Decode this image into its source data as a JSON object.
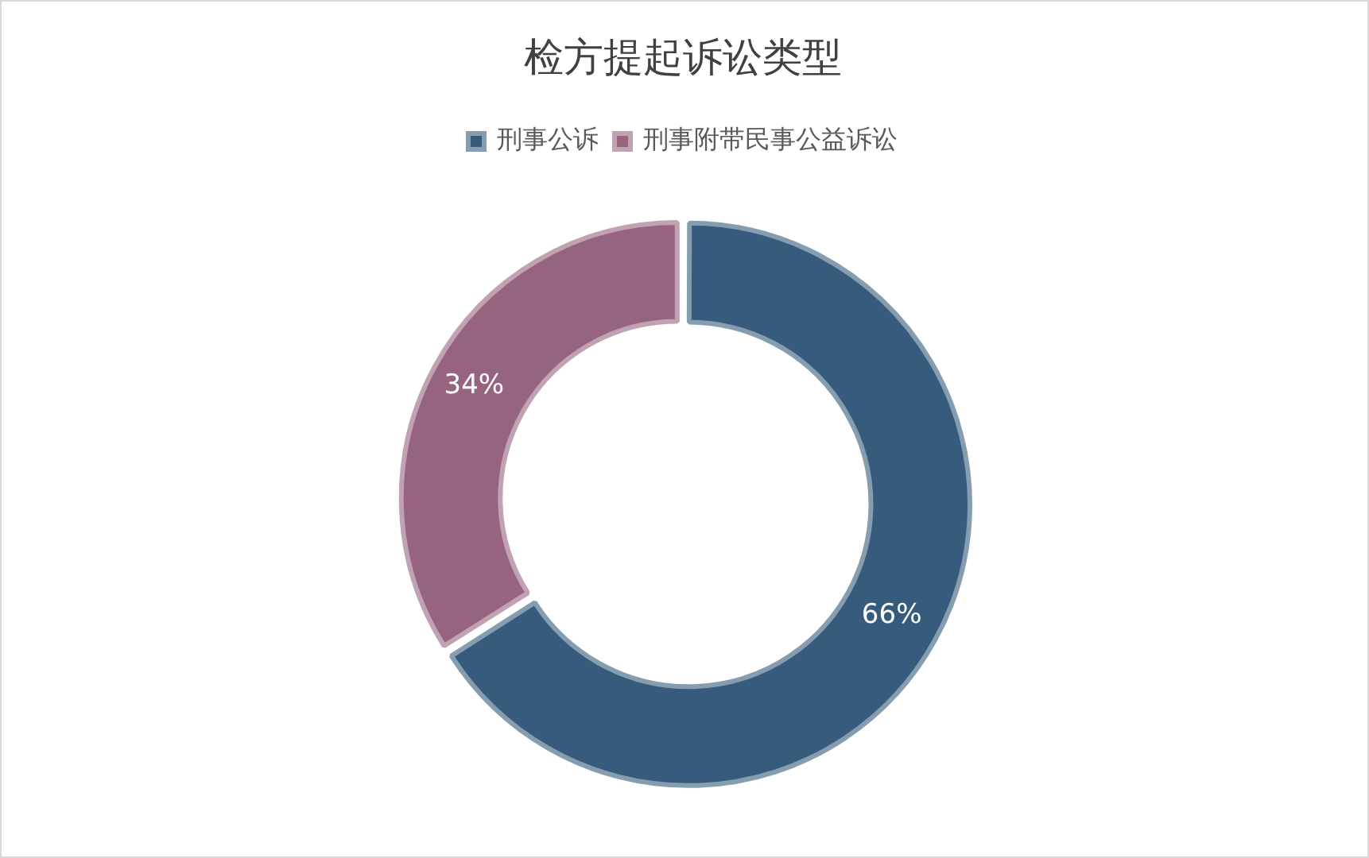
{
  "chart_data": {
    "type": "donut",
    "title": "检方提起诉讼类型",
    "categories": [
      "刑事公诉",
      "刑事附带民事公益诉讼"
    ],
    "values": [
      66,
      34
    ],
    "colors": [
      "#365b7c",
      "#976480"
    ],
    "value_labels": [
      "66%",
      "34%"
    ],
    "legend": "top"
  }
}
